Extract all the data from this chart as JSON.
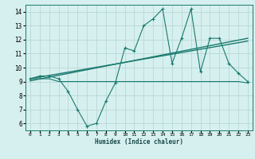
{
  "x": [
    0,
    1,
    2,
    3,
    4,
    5,
    6,
    7,
    8,
    9,
    10,
    11,
    12,
    13,
    14,
    15,
    16,
    17,
    18,
    19,
    20,
    21,
    22,
    23
  ],
  "y_main": [
    9.2,
    9.4,
    9.4,
    9.2,
    8.3,
    7.0,
    5.8,
    6.0,
    7.6,
    8.9,
    11.4,
    11.2,
    13.0,
    13.5,
    14.2,
    10.3,
    12.1,
    14.2,
    9.7,
    12.1,
    12.1,
    10.3,
    9.6,
    9.0
  ],
  "y_flat": [
    9.2,
    9.2,
    9.2,
    9.0,
    9.0,
    9.0,
    9.0,
    9.0,
    9.0,
    9.0,
    9.0,
    9.0,
    9.0,
    9.0,
    9.0,
    9.0,
    9.0,
    9.0,
    9.0,
    9.0,
    9.0,
    9.0,
    9.0,
    8.9
  ],
  "trend1_x": [
    0,
    23
  ],
  "trend1_y": [
    9.2,
    11.9
  ],
  "trend2_x": [
    0,
    23
  ],
  "trend2_y": [
    9.05,
    12.1
  ],
  "line_color": "#1a7a6e",
  "bg_color": "#d6f0ef",
  "grid_color": "#b8d8d6",
  "xlabel": "Humidex (Indice chaleur)",
  "xlim": [
    -0.5,
    23.5
  ],
  "ylim": [
    5.5,
    14.5
  ],
  "yticks": [
    6,
    7,
    8,
    9,
    10,
    11,
    12,
    13,
    14
  ],
  "xticks": [
    0,
    1,
    2,
    3,
    4,
    5,
    6,
    7,
    8,
    9,
    10,
    11,
    12,
    13,
    14,
    15,
    16,
    17,
    18,
    19,
    20,
    21,
    22,
    23
  ]
}
